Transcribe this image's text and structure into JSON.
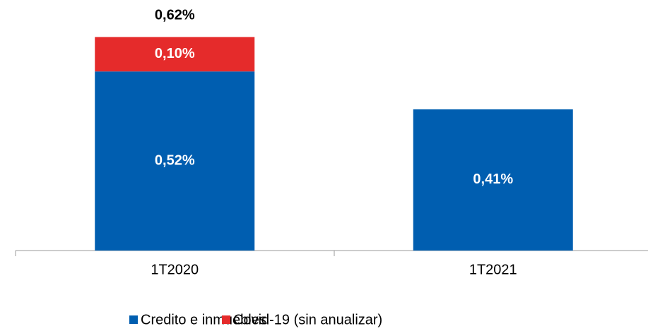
{
  "chart_data": {
    "type": "stacked_bar",
    "categories": [
      "1T2020",
      "1T2021"
    ],
    "series": [
      {
        "name": "Credito e inmuebles",
        "color": "#005eb0",
        "values": [
          0.52,
          0.41
        ],
        "value_labels": [
          "0,52%",
          "0,41%"
        ]
      },
      {
        "name": "Covid-19 (sin anualizar)",
        "color": "#e52b2b",
        "values": [
          0.1,
          null
        ],
        "value_labels": [
          "0,10%",
          null
        ]
      }
    ],
    "totals": [
      0.62,
      null
    ],
    "total_labels": [
      "0,62%",
      null
    ],
    "ylim": [
      0,
      0.7
    ]
  }
}
